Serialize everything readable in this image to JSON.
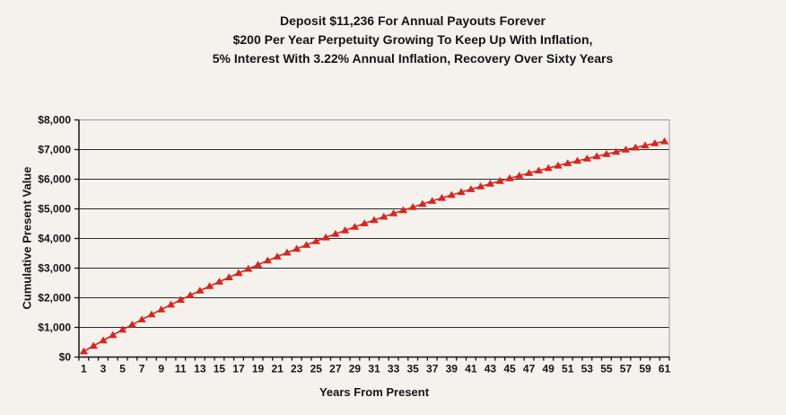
{
  "title": {
    "line1": "Deposit $11,236 For Annual Payouts Forever",
    "line2": "$200 Per Year Perpetuity Growing To Keep Up With Inflation,",
    "line3": "5% Interest With 3.22% Annual Inflation, Recovery Over Sixty Years"
  },
  "chart_data": {
    "type": "line",
    "title": "Deposit $11,236 For Annual Payouts Forever — $200 Per Year Perpetuity Growing To Keep Up With Inflation, 5% Interest With 3.22% Annual Inflation, Recovery Over Sixty Years",
    "xlabel": "Years From Present",
    "ylabel": "Cumulative Present Value",
    "legend": "none",
    "grid": "horizontal",
    "marker": "triangle-up",
    "colors": {
      "series": "#d9251d",
      "gridline": "#2b2b2b",
      "axis": "#141414",
      "plot_border": "#9a9a9a",
      "background": "#f5f2ee"
    },
    "xlim": [
      1,
      61
    ],
    "ylim": [
      0,
      8000
    ],
    "y_ticks": [
      0,
      1000,
      2000,
      3000,
      4000,
      5000,
      6000,
      7000,
      8000
    ],
    "y_tick_labels": [
      "$0",
      "$1,000",
      "$2,000",
      "$3,000",
      "$4,000",
      "$5,000",
      "$6,000",
      "$7,000",
      "$8,000"
    ],
    "x_label_step": 2,
    "x": [
      1,
      2,
      3,
      4,
      5,
      6,
      7,
      8,
      9,
      10,
      11,
      12,
      13,
      14,
      15,
      16,
      17,
      18,
      19,
      20,
      21,
      22,
      23,
      24,
      25,
      26,
      27,
      28,
      29,
      30,
      31,
      32,
      33,
      34,
      35,
      36,
      37,
      38,
      39,
      40,
      41,
      42,
      43,
      44,
      45,
      46,
      47,
      48,
      49,
      50,
      51,
      52,
      53,
      54,
      55,
      56,
      57,
      58,
      59,
      60,
      61
    ],
    "values": [
      190,
      378,
      562,
      743,
      921,
      1095,
      1267,
      1436,
      1602,
      1766,
      1926,
      2084,
      2239,
      2392,
      2542,
      2689,
      2834,
      2976,
      3116,
      3254,
      3389,
      3522,
      3653,
      3782,
      3908,
      4032,
      4154,
      4274,
      4392,
      4508,
      4622,
      4734,
      4845,
      4953,
      5059,
      5164,
      5267,
      5368,
      5468,
      5565,
      5662,
      5756,
      5849,
      5940,
      6030,
      6118,
      6205,
      6290,
      6374,
      6457,
      6538,
      6617,
      6695,
      6772,
      6848,
      6922,
      6996,
      7067,
      7138,
      7208,
      7276
    ]
  }
}
